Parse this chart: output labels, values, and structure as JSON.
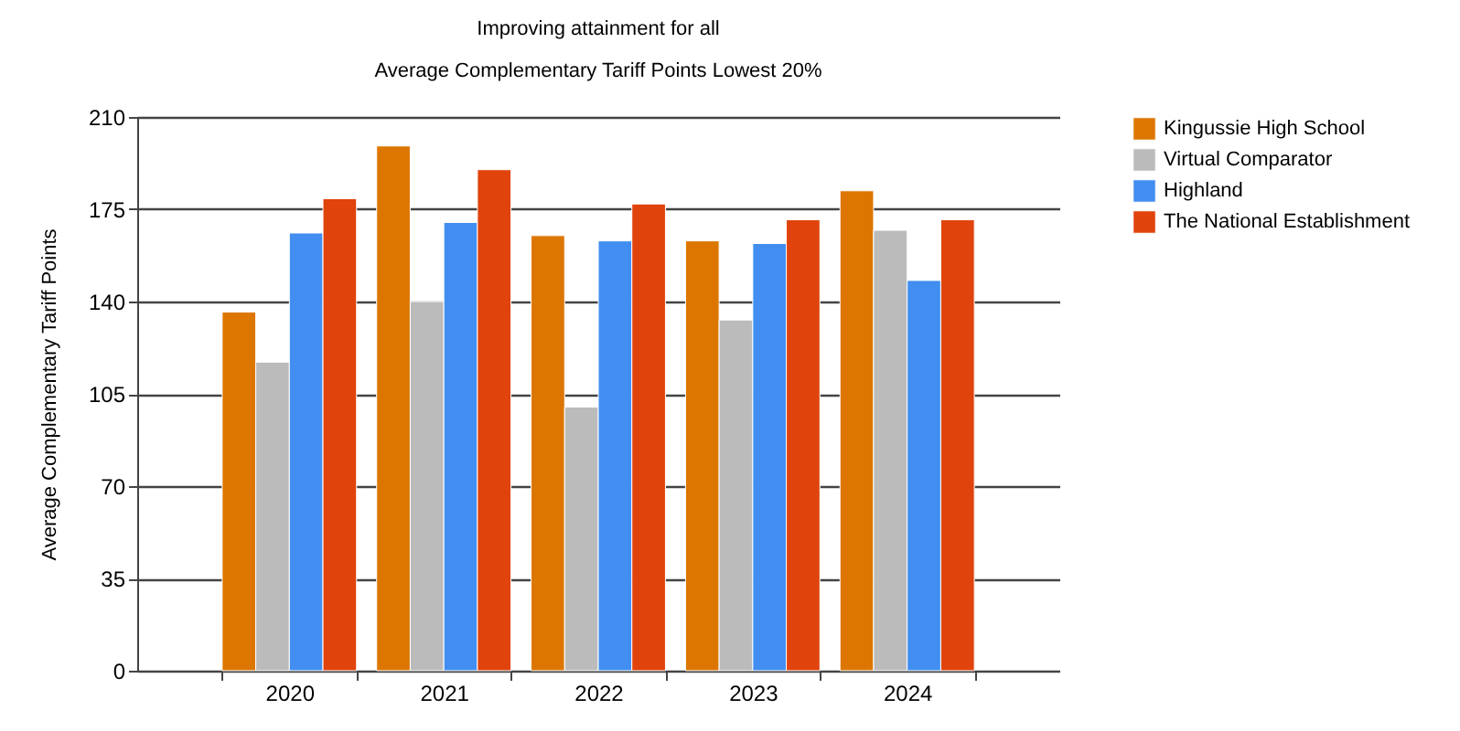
{
  "chart_data": {
    "type": "bar",
    "title": "Improving attainment for all",
    "subtitle": "Average Complementary Tariff Points Lowest 20%",
    "ylabel": "Average Complementary Tariff Points",
    "categories": [
      "2020",
      "2021",
      "2022",
      "2023",
      "2024"
    ],
    "series": [
      {
        "name": "Kingussie High School",
        "color": "#dc7600",
        "values": [
          136,
          199,
          165,
          163,
          182
        ]
      },
      {
        "name": "Virtual Comparator",
        "color": "#bbbbbb",
        "values": [
          117,
          140,
          100,
          133,
          167
        ]
      },
      {
        "name": "Highland",
        "color": "#428ef0",
        "values": [
          166,
          170,
          163,
          162,
          148
        ]
      },
      {
        "name": "The National Establishment",
        "color": "#e0430c",
        "values": [
          179,
          190,
          177,
          171,
          171
        ]
      }
    ],
    "ylim": [
      0,
      210
    ],
    "yticks": [
      0,
      35,
      70,
      105,
      140,
      175,
      210
    ],
    "grid": "y",
    "legend": "top right"
  }
}
